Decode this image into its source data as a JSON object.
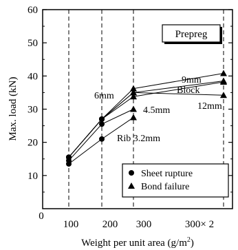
{
  "chart_data": {
    "type": "line",
    "title": "",
    "xlabel": "Weight per unit area (g/m",
    "xlabel_sup": "2",
    "xlabel_close": ")",
    "ylabel": "Max. load (kN)",
    "box_label": "Prepreg",
    "ylim": [
      0,
      60
    ],
    "yticks": [
      0,
      10,
      20,
      30,
      40,
      50,
      60
    ],
    "xticks": [
      "100",
      "200",
      "300",
      "300× 2"
    ],
    "x": [
      100,
      200,
      300,
      600
    ],
    "grid": "vertical dashed at each x position",
    "series": [
      {
        "name": "Rib 3.2mm",
        "values": [
          13.5,
          21.0,
          27.5,
          null
        ],
        "markers": [
          "circle",
          "circle",
          "triangle",
          null
        ]
      },
      {
        "name": "4.5mm",
        "values": [
          14.5,
          25.5,
          30.0,
          null
        ],
        "markers": [
          "circle",
          "circle",
          "triangle",
          null
        ]
      },
      {
        "name": "6mm",
        "values": [
          15.5,
          27.0,
          35.0,
          38.5
        ],
        "markers": [
          "circle",
          "circle",
          "triangle",
          "triangle"
        ]
      },
      {
        "name": "9mm",
        "values": [
          15.5,
          27.0,
          36.2,
          40.8
        ],
        "markers": [
          "circle",
          "circle",
          "triangle",
          "triangle"
        ]
      },
      {
        "name": "12mm",
        "values": [
          15.5,
          27.0,
          35.0,
          34.2
        ],
        "markers": [
          "circle",
          "circle",
          "triangle",
          "triangle"
        ]
      },
      {
        "name": "Block",
        "values": [
          15.5,
          27.0,
          33.8,
          38.2
        ],
        "markers": [
          "circle",
          "circle",
          "triangle",
          "triangle"
        ]
      }
    ],
    "legend": [
      {
        "marker": "circle",
        "label": "Sheet rupture"
      },
      {
        "marker": "triangle",
        "label": "Bond failure"
      }
    ],
    "legend_position": "bottom-right"
  }
}
